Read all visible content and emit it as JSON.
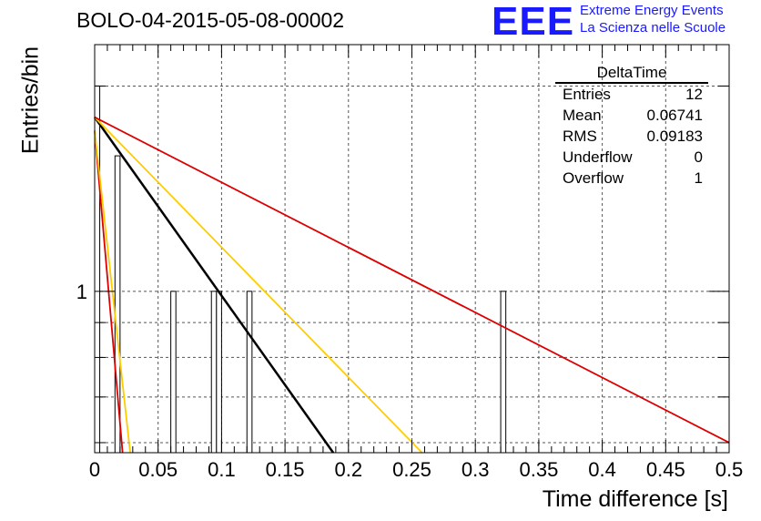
{
  "title": "BOLO-04-2015-05-08-00002",
  "logo": {
    "mark": "EEE",
    "line1": "Extreme Energy Events",
    "line2": "La Scienza nelle Scuole",
    "color": "#1a1aff"
  },
  "stats_box": {
    "name": "DeltaTime",
    "rows": [
      {
        "label": "Entries",
        "value": "12"
      },
      {
        "label": "Mean",
        "value": "0.06741"
      },
      {
        "label": "RMS",
        "value": "0.09183"
      },
      {
        "label": "Underflow",
        "value": "0"
      },
      {
        "label": "Overflow",
        "value": "1"
      }
    ]
  },
  "chart_data": {
    "type": "bar",
    "title": "BOLO-04-2015-05-08-00002",
    "xlabel": "Time difference [s]",
    "ylabel": "Entries/bin",
    "xlim": [
      0,
      0.5
    ],
    "ylim": [
      0.58,
      2.3
    ],
    "y_scale": "log",
    "grid": true,
    "x_ticks": [
      "0",
      "0.05",
      "0.1",
      "0.15",
      "0.2",
      "0.25",
      "0.3",
      "0.35",
      "0.4",
      "0.45",
      "0.5"
    ],
    "y_tick_labels": [
      {
        "value": 1,
        "label": "1"
      }
    ],
    "bin_width": 0.004,
    "bins": [
      {
        "x": 0.0,
        "value": 2
      },
      {
        "x": 0.016,
        "value": 1.58
      },
      {
        "x": 0.06,
        "value": 1
      },
      {
        "x": 0.092,
        "value": 1
      },
      {
        "x": 0.096,
        "value": 1
      },
      {
        "x": 0.12,
        "value": 1
      },
      {
        "x": 0.32,
        "value": 1
      }
    ],
    "fit_lines": [
      {
        "color": "#dd0000",
        "x": [
          0.0,
          0.022
        ],
        "y": [
          1.72,
          0.58
        ]
      },
      {
        "color": "#ffcc00",
        "x": [
          0.0,
          0.028
        ],
        "y": [
          1.72,
          0.58
        ]
      },
      {
        "color": "#000000",
        "x": [
          0.0,
          0.188
        ],
        "y": [
          1.8,
          0.58
        ]
      },
      {
        "color": "#ffcc00",
        "x": [
          0.0,
          0.258
        ],
        "y": [
          1.8,
          0.58
        ]
      },
      {
        "color": "#dd0000",
        "x": [
          0.0,
          0.5
        ],
        "y": [
          1.8,
          0.6
        ]
      }
    ]
  }
}
